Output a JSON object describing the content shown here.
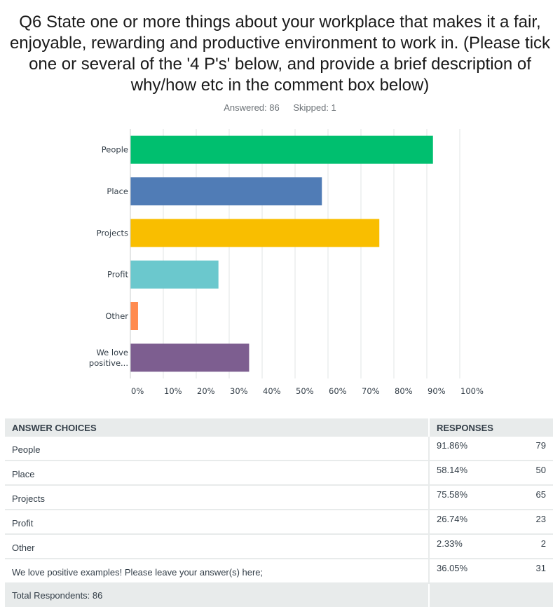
{
  "question": {
    "title": "Q6 State one or more things about your workplace that makes it a fair, enjoyable, rewarding and productive environment to work in. (Please tick one or several of the '4 P's' below, and provide a brief description of why/how etc in the comment box below)",
    "answered": "Answered: 86",
    "skipped": "Skipped: 1"
  },
  "colors": {
    "people": "#00bf6f",
    "place": "#507cb6",
    "projects": "#f9be00",
    "profit": "#6bc8cd",
    "other": "#ff8b4f",
    "positive": "#7d5e90",
    "grid": "#e0e4e4"
  },
  "chart_data": {
    "type": "bar",
    "orientation": "horizontal",
    "categories": [
      "People",
      "Place",
      "Projects",
      "Profit",
      "Other",
      "We love positive..."
    ],
    "values": [
      91.86,
      58.14,
      75.58,
      26.74,
      2.33,
      36.05
    ],
    "xlim": [
      0,
      100
    ],
    "xticks": [
      "0%",
      "10%",
      "20%",
      "30%",
      "40%",
      "50%",
      "60%",
      "70%",
      "80%",
      "90%",
      "100%"
    ],
    "grid": true
  },
  "table": {
    "headers": [
      "ANSWER CHOICES",
      "RESPONSES"
    ],
    "rows": [
      {
        "choice": "People",
        "percent": "91.86%",
        "count": "79"
      },
      {
        "choice": "Place",
        "percent": "58.14%",
        "count": "50"
      },
      {
        "choice": "Projects",
        "percent": "75.58%",
        "count": "65"
      },
      {
        "choice": "Profit",
        "percent": "26.74%",
        "count": "23"
      },
      {
        "choice": "Other",
        "percent": "2.33%",
        "count": "2"
      },
      {
        "choice": "We love positive examples! Please leave your answer(s) here;",
        "percent": "36.05%",
        "count": "31"
      }
    ],
    "total": "Total Respondents: 86"
  }
}
